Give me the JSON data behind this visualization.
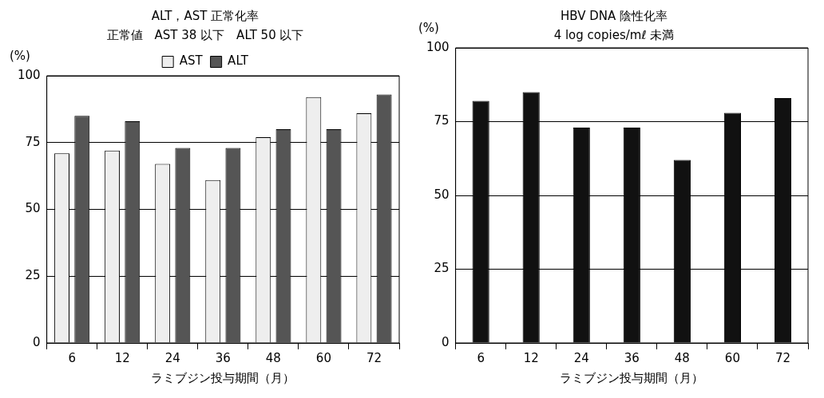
{
  "chart_data": [
    {
      "type": "bar",
      "title": "ALT，AST 正常化率",
      "subtitle": "正常値　AST 38 以下　ALT 50 以下",
      "ylabel": "(%)",
      "xlabel": "ラミブジン投与期間（月）",
      "categories": [
        "6",
        "12",
        "24",
        "36",
        "48",
        "60",
        "72"
      ],
      "series": [
        {
          "name": "AST",
          "color": "#eeeeee",
          "values": [
            71,
            72,
            67,
            61,
            77,
            92,
            86
          ]
        },
        {
          "name": "ALT",
          "color": "#555555",
          "values": [
            85,
            83,
            73,
            73,
            80,
            80,
            93
          ]
        }
      ],
      "ylim": [
        0,
        100
      ],
      "yticks": [
        0,
        25,
        50,
        75,
        100
      ],
      "grid": "y",
      "legend": "top"
    },
    {
      "type": "bar",
      "title": "HBV DNA 陰性化率",
      "subtitle": "4 log copies/mℓ 未満",
      "ylabel": "(%)",
      "xlabel": "ラミブジン投与期間（月）",
      "categories": [
        "6",
        "12",
        "24",
        "36",
        "48",
        "60",
        "72"
      ],
      "values": [
        82,
        85,
        73,
        73,
        62,
        78,
        83
      ],
      "color": "#111111",
      "ylim": [
        0,
        100
      ],
      "yticks": [
        0,
        25,
        50,
        75,
        100
      ],
      "grid": "y"
    }
  ]
}
